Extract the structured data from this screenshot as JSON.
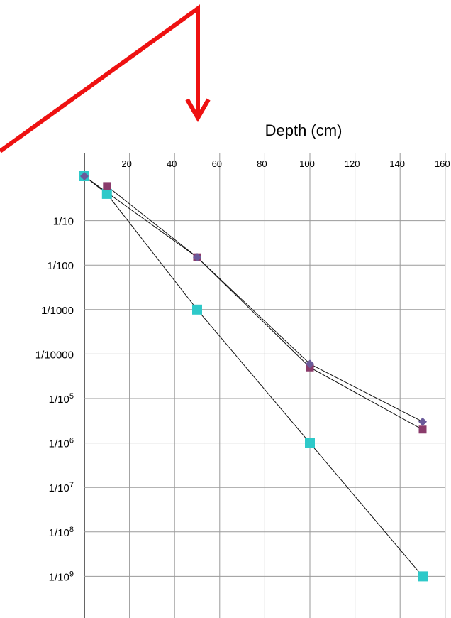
{
  "chart_data": {
    "type": "scatter",
    "title": "",
    "xlabel": "Depth (cm)",
    "ylabel": "",
    "x_axis_position": "top",
    "y_scale": "log",
    "xlim": [
      0,
      160
    ],
    "ylim": [
      1e-10,
      1
    ],
    "x_ticks": [
      {
        "value": 20,
        "label": "20"
      },
      {
        "value": 40,
        "label": "40"
      },
      {
        "value": 60,
        "label": "60"
      },
      {
        "value": 80,
        "label": "80"
      },
      {
        "value": 100,
        "label": "100"
      },
      {
        "value": 120,
        "label": "120"
      },
      {
        "value": 140,
        "label": "140"
      },
      {
        "value": 160,
        "label": "160"
      }
    ],
    "y_ticks": [
      {
        "value": 0.1,
        "base": "1/10",
        "exp": ""
      },
      {
        "value": 0.01,
        "base": "1/100",
        "exp": ""
      },
      {
        "value": 0.001,
        "base": "1/1000",
        "exp": ""
      },
      {
        "value": 0.0001,
        "base": "1/10000",
        "exp": ""
      },
      {
        "value": 1e-05,
        "base": "1/10",
        "exp": "5"
      },
      {
        "value": 1e-06,
        "base": "1/10",
        "exp": "6"
      },
      {
        "value": 1e-07,
        "base": "1/10",
        "exp": "7"
      },
      {
        "value": 1e-08,
        "base": "1/10",
        "exp": "8"
      },
      {
        "value": 1e-09,
        "base": "1/10",
        "exp": "9"
      }
    ],
    "grid": true,
    "series": [
      {
        "color": "#2ec9c9",
        "marker": "square",
        "points": [
          [
            0,
            1
          ],
          [
            10,
            0.4
          ],
          [
            50,
            0.001
          ],
          [
            100,
            1e-06
          ],
          [
            150,
            1e-09
          ]
        ]
      },
      {
        "color": "#8a3b6b",
        "marker": "square",
        "points": [
          [
            10,
            0.6
          ],
          [
            50,
            0.015
          ],
          [
            100,
            5e-05
          ],
          [
            150,
            2e-06
          ]
        ]
      },
      {
        "color": "#6a5a9a",
        "marker": "diamond",
        "points": [
          [
            0,
            1
          ],
          [
            50,
            0.015
          ],
          [
            100,
            6e-05
          ],
          [
            150,
            3e-06
          ]
        ]
      }
    ],
    "annotations": [
      {
        "type": "arrow",
        "color": "#ee1111",
        "description": "red bent arrow pointing down at depth 50"
      }
    ]
  }
}
